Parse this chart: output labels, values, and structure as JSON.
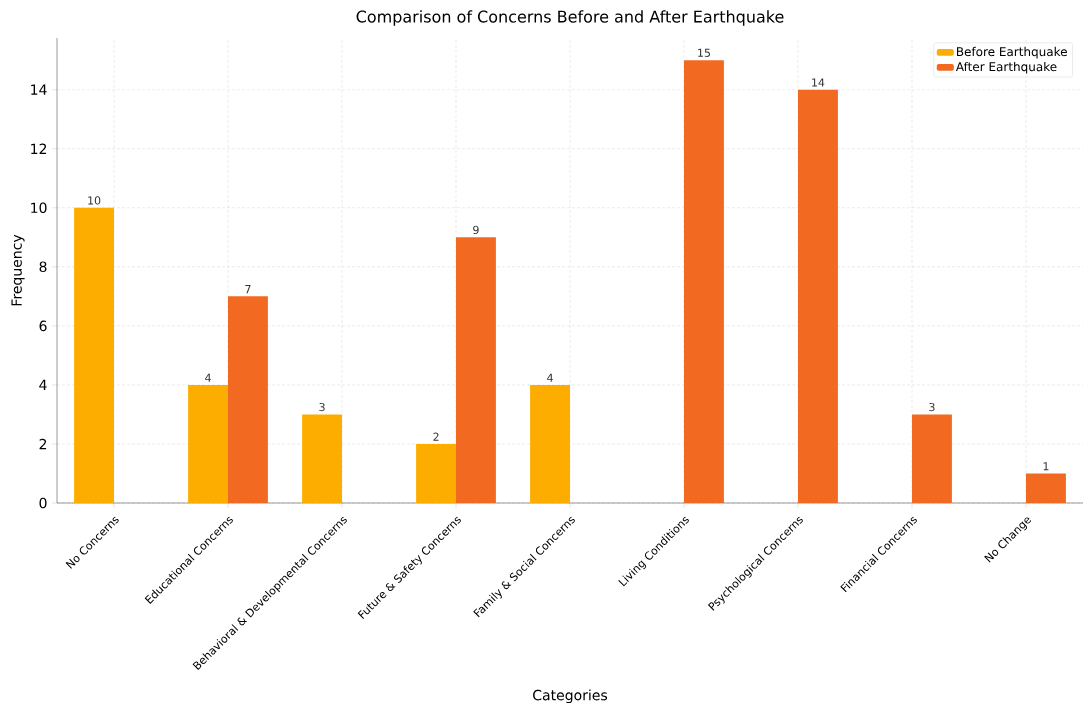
{
  "chart_data": {
    "type": "bar",
    "title": "Comparison of Concerns Before and After Earthquake",
    "xlabel": "Categories",
    "ylabel": "Frequency",
    "categories": [
      "No Concerns",
      "Educational Concerns",
      "Behavioral & Developmental Concerns",
      "Future & Safety Concerns",
      "Family & Social Concerns",
      "Living Conditions",
      "Psychological Concerns",
      "Financial Concerns",
      "No Change"
    ],
    "series": [
      {
        "name": "Before Earthquake",
        "color": "#fcad00",
        "values": [
          10,
          4,
          3,
          2,
          4,
          null,
          null,
          null,
          null
        ]
      },
      {
        "name": "After Earthquake",
        "color": "#f26922",
        "values": [
          null,
          7,
          null,
          9,
          null,
          15,
          14,
          3,
          1
        ]
      }
    ],
    "ylim": [
      0,
      15.75
    ],
    "yticks": [
      0,
      2,
      4,
      6,
      8,
      10,
      12,
      14
    ],
    "grid": true,
    "legend": "top right",
    "data_labels": true
  }
}
